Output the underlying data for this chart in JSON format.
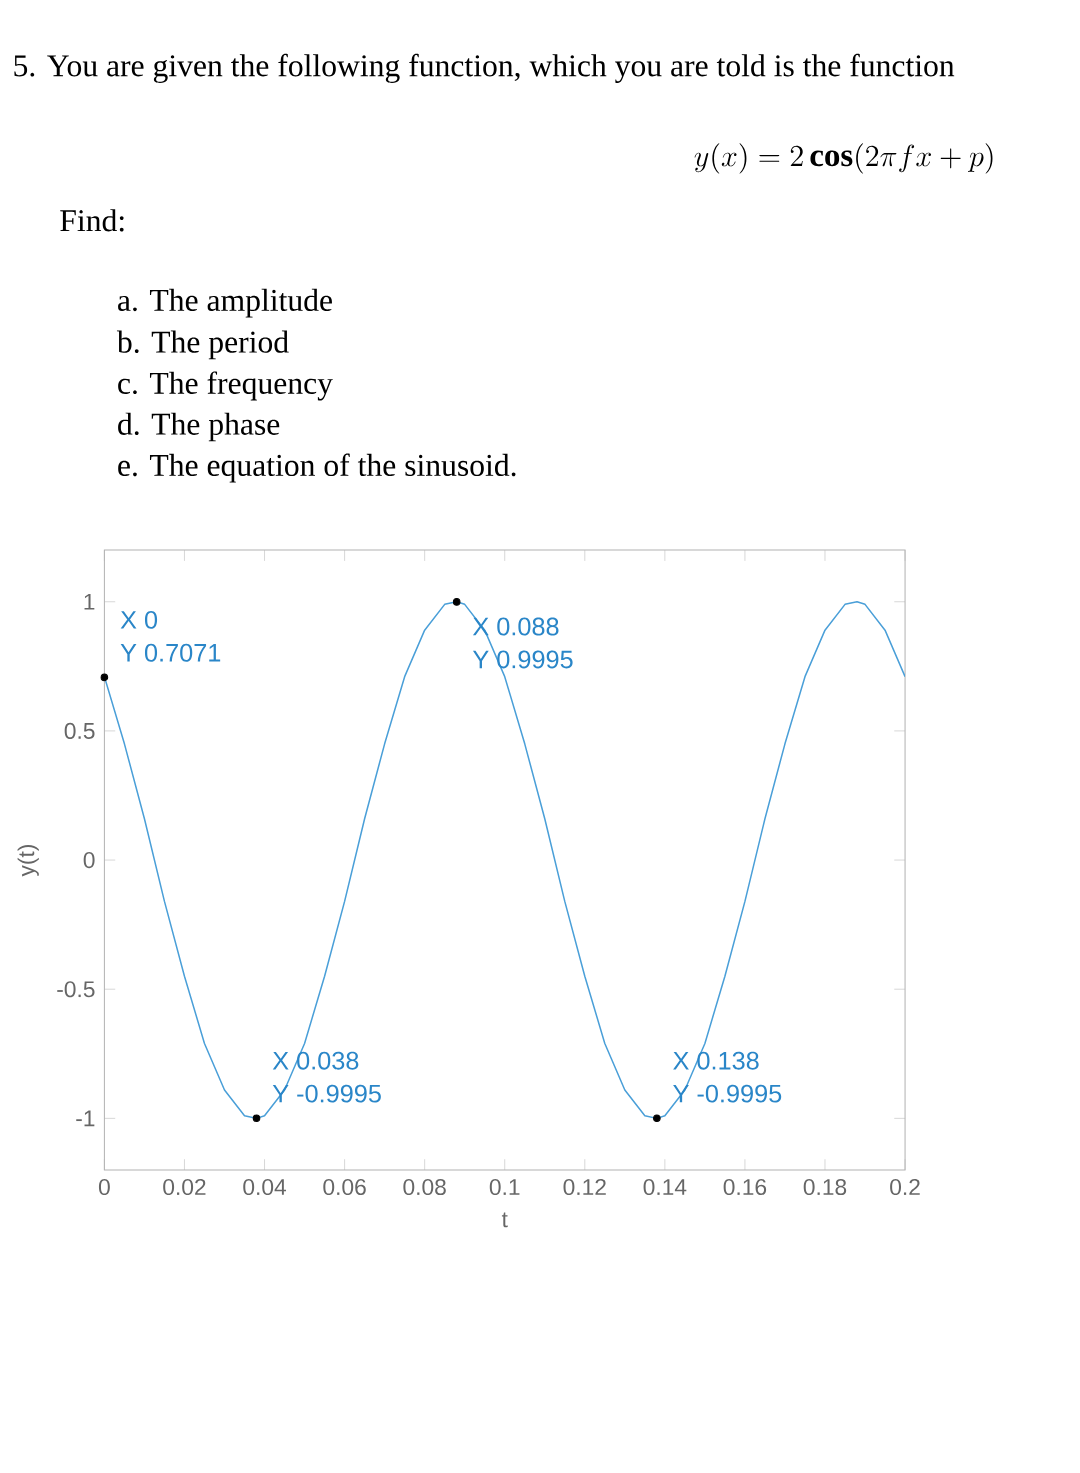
{
  "chart_data": {
    "type": "line",
    "title": "5. You are given the following function, which you are told is the function",
    "subtitle": "y(x) = 2\\,\\mathbf{cos}(2\\pi f x + p)",
    "xlabel": "t",
    "ylabel": "y(t)",
    "color": "#4a9fd8",
    "line_style": "solid",
    "xlim": [
      0,
      0.2
    ],
    "ylim": [
      -1.2,
      1.2
    ],
    "xticks": [
      0,
      0.02,
      0.04,
      0.06,
      0.08,
      0.1,
      0.12,
      0.14,
      0.16,
      0.18,
      0.2
    ],
    "yticks": [
      -1,
      -0.5,
      0,
      0.5,
      1
    ],
    "x": [
      0,
      0.005,
      0.01,
      0.015,
      0.02,
      0.025,
      0.03,
      0.035,
      0.038,
      0.04,
      0.045,
      0.05,
      0.055,
      0.06,
      0.065,
      0.07,
      0.075,
      0.08,
      0.085,
      0.088,
      0.09,
      0.095,
      0.1,
      0.105,
      0.11,
      0.115,
      0.12,
      0.125,
      0.13,
      0.135,
      0.138,
      0.14,
      0.145,
      0.15,
      0.155,
      0.16,
      0.165,
      0.17,
      0.175,
      0.18,
      0.185,
      0.188,
      0.19,
      0.195,
      0.2
    ],
    "values": [
      0.71,
      0.45,
      0.16,
      -0.16,
      -0.45,
      -0.71,
      -0.89,
      -0.99,
      -1,
      -0.99,
      -0.89,
      -0.71,
      -0.45,
      -0.16,
      0.16,
      0.45,
      0.71,
      0.89,
      0.99,
      1,
      0.99,
      0.89,
      0.71,
      0.45,
      0.16,
      -0.16,
      -0.45,
      -0.71,
      -0.89,
      -0.99,
      -1,
      -0.99,
      -0.89,
      -0.71,
      -0.45,
      -0.16,
      0.16,
      0.45,
      0.71,
      0.89,
      0.99,
      1,
      0.99,
      0.89,
      0.71
    ],
    "annotations": [
      "Find:",
      "a. The amplitude",
      "b. The period",
      "c. The frequency",
      "d. The phase",
      "e. The equation of the sinusoid.",
      {
        "text": "X 0",
        "x": 0,
        "y": 0.7071
      },
      {
        "text": "Y 0.7071",
        "x": 0,
        "y": 0.7071
      },
      {
        "text": "X 0.038",
        "x": 0.038,
        "y": -0.9995
      },
      {
        "text": "Y -0.9995",
        "x": 0.038,
        "y": -0.9995
      },
      {
        "text": "X 0.088",
        "x": 0.088,
        "y": 0.9995
      },
      {
        "text": "Y 0.9995",
        "x": 0.088,
        "y": 0.9995
      },
      {
        "text": "X 0.138",
        "x": 0.138,
        "y": -0.9995
      },
      {
        "text": "Y -0.9995",
        "x": 0.138,
        "y": -0.9995
      }
    ]
  }
}
